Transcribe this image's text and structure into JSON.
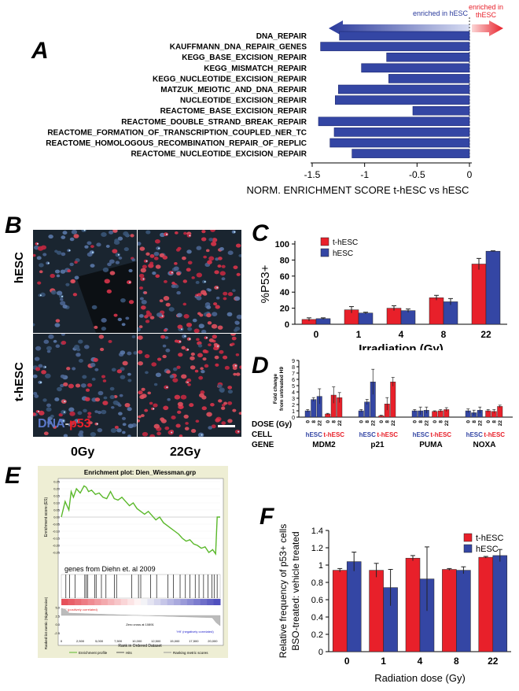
{
  "panelA": {
    "label": "A",
    "enriched_hESC": "enriched in hESC",
    "enriched_thESC": "enriched in thESC",
    "xlabel": "NORM. ENRICHMENT SCORE t-hESC vs hESC",
    "ticks": [
      "-1.5",
      "-1",
      "-0.5",
      "0"
    ],
    "chart_data": {
      "type": "bar",
      "orientation": "horizontal",
      "categories": [
        "DNA_REPAIR",
        "KAUFFMANN_DNA_REPAIR_GENES",
        "KEGG_BASE_EXCISION_REPAIR",
        "KEGG_MISMATCH_REPAIR",
        "KEGG_NUCLEOTIDE_EXCISION_REPAIR",
        "MATZUK_MEIOTIC_AND_DNA_REPAIR",
        "NUCLEOTIDE_EXCISION_REPAIR",
        "REACTOME_BASE_EXCISION_REPAIR",
        "REACTOME_DOUBLE_STRAND_BREAK_REPAIR",
        "REACTOME_FORMATION_OF_TRANSCRIPTION_COUPLED_NER_TC",
        "REACTOME_HOMOLOGOUS_RECOMBINATION_REPAIR_OF_REPLIC",
        "REACTOME_NUCLEOTIDE_EXCISION_REPAIR"
      ],
      "values": [
        -1.24,
        -1.42,
        -0.79,
        -1.03,
        -0.77,
        -1.25,
        -1.28,
        -0.54,
        -1.44,
        -1.29,
        -1.33,
        -1.12
      ],
      "xlim": [
        -1.5,
        0
      ]
    }
  },
  "panelB": {
    "label": "B",
    "row_labels": [
      "hESC",
      "t-hESC"
    ],
    "col_labels": [
      "0Gy",
      "22Gy"
    ],
    "legend_dna": "DNA",
    "legend_sep": "-",
    "legend_p53": "p53"
  },
  "panelC": {
    "label": "C",
    "ylabel": "%P53+",
    "xlabel": "Irradiation (Gy)",
    "yticks": [
      "0",
      "20",
      "40",
      "60",
      "80",
      "100"
    ],
    "chart_data": {
      "type": "bar",
      "categories": [
        "0",
        "1",
        "4",
        "8",
        "22"
      ],
      "series": [
        {
          "name": "t-hESC",
          "color": "#e8202a",
          "values": [
            6,
            18,
            20,
            33,
            75
          ],
          "errors": [
            2,
            4,
            3,
            3,
            7
          ]
        },
        {
          "name": "hESC",
          "color": "#3446a4",
          "values": [
            7,
            14,
            17,
            28,
            91
          ],
          "errors": [
            1,
            1,
            2,
            4,
            0.5
          ]
        }
      ],
      "ylim": [
        0,
        100
      ]
    }
  },
  "panelD": {
    "label": "D",
    "ylabel": "Fold change from untreated H9",
    "yticks": [
      "0",
      "1",
      "2",
      "3",
      "4",
      "5",
      "6",
      "7",
      "8",
      "9"
    ],
    "dose_label": "DOSE (Gy)",
    "cell_label": "CELL",
    "gene_label": "GENE",
    "doses": [
      "0",
      "8",
      "22"
    ],
    "cells": [
      "hESC",
      "t-hESC"
    ],
    "chart_data": {
      "type": "bar",
      "groups": [
        {
          "gene": "MDM2",
          "hESC": [
            1,
            2.8,
            3.3
          ],
          "hESC_err": [
            0.2,
            0.3,
            1.2
          ],
          "thESC": [
            0.5,
            3.5,
            3.1
          ],
          "thESC_err": [
            0.1,
            1.3,
            0.8
          ]
        },
        {
          "gene": "p21",
          "hESC": [
            1,
            2.4,
            5.6
          ],
          "hESC_err": [
            0.2,
            0.4,
            2
          ],
          "thESC": [
            0.2,
            2.1,
            5.6
          ],
          "thESC_err": [
            0.1,
            1,
            0.7
          ]
        },
        {
          "gene": "PUMA",
          "hESC": [
            1,
            1,
            1.1
          ],
          "hESC_err": [
            0.2,
            0.6,
            0.5
          ],
          "thESC": [
            0.9,
            1,
            1.2
          ],
          "thESC_err": [
            0.1,
            0.2,
            0.3
          ]
        },
        {
          "gene": "NOXA",
          "hESC": [
            1,
            0.7,
            1.1
          ],
          "hESC_err": [
            0.3,
            0.4,
            0.5
          ],
          "thESC": [
            1,
            0.9,
            1.7
          ],
          "thESC_err": [
            0.2,
            0.3,
            0.2
          ]
        }
      ],
      "ylim": [
        0,
        9
      ]
    }
  },
  "panelE": {
    "label": "E",
    "title": "Enrichment plot: Dien_Wiessman.grp",
    "es_label": "Enrichment score (ES)",
    "es_ticks": [
      "0.25",
      "0.20",
      "0.15",
      "0.10",
      "0.05",
      "0.00",
      "-0.05",
      "-0.10",
      "-0.15",
      "-0.20",
      "-0.25"
    ],
    "genes_text": "genes from Diehn  et. al 2009",
    "pos_corr": "'t1' (positively correlated)",
    "neg_corr": "'H9' (negatively correlated)",
    "zero_cross": "Zero cross at 10891",
    "rank_label": "Ranked list metric (Signal2Noise)",
    "rank_ticks": [
      "5.0",
      "2.5",
      "0.0",
      "-2.5"
    ],
    "x_ticks": [
      "0",
      "2,500",
      "5,000",
      "7,500",
      "10,000",
      "12,500",
      "15,000",
      "17,500",
      "20,000"
    ],
    "x_label": "Rank in Ordered Dataset",
    "legend": [
      "Enrichment profile",
      "Hits",
      "Ranking metric scores"
    ],
    "chart_data": {
      "type": "line",
      "x": [
        0,
        500,
        1000,
        1300,
        1600,
        2000,
        2500,
        3000,
        3300,
        3600,
        4000,
        4500,
        5000,
        5500,
        6000,
        6500,
        7000,
        7500,
        8000,
        8500,
        9000,
        9500,
        10000,
        10500,
        11000,
        11500,
        12000,
        12500,
        13000,
        13500,
        14000,
        14500,
        15000,
        15500,
        16000,
        16500,
        17000,
        17500,
        18000,
        18500,
        19000,
        19500,
        20000,
        20400,
        20600,
        21000
      ],
      "y": [
        0,
        0.11,
        0.05,
        0.18,
        0.14,
        0.2,
        0.17,
        0.22,
        0.21,
        0.18,
        0.19,
        0.16,
        0.17,
        0.14,
        0.13,
        0.18,
        0.13,
        0.12,
        0.14,
        0.11,
        0.08,
        0.1,
        0.06,
        0.04,
        0.02,
        0.04,
        0.01,
        -0.02,
        0.0,
        -0.04,
        -0.06,
        -0.08,
        -0.1,
        -0.12,
        -0.15,
        -0.17,
        -0.16,
        -0.19,
        -0.2,
        -0.22,
        -0.21,
        -0.25,
        -0.23,
        -0.26,
        0.0,
        0.0
      ],
      "xlim": [
        0,
        21000
      ],
      "ylim": [
        -0.25,
        0.25
      ],
      "hits": [
        600,
        1100,
        1800,
        3100,
        3300,
        3500,
        4400,
        4600,
        5300,
        5900,
        7000,
        7300,
        9300,
        10200,
        10500,
        11800,
        12600,
        14100,
        14800,
        15700,
        16400,
        17000,
        17700,
        18200,
        18800,
        19400,
        19900,
        20200,
        20600
      ]
    }
  },
  "panelF": {
    "label": "F",
    "ylabel": "Relative frequency of p53+ cells BSO-treated: vehicle treated",
    "xlabel": "Radiation dose (Gy)",
    "yticks": [
      "0",
      "0.2",
      "0.4",
      "0.6",
      "0.8",
      "1",
      "1.2",
      "1.4"
    ],
    "chart_data": {
      "type": "bar",
      "categories": [
        "0",
        "1",
        "4",
        "8",
        "22"
      ],
      "series": [
        {
          "name": "t-hESC",
          "color": "#e8202a",
          "values": [
            0.94,
            0.94,
            1.08,
            0.95,
            1.09
          ],
          "errors": [
            0.02,
            0.08,
            0.03,
            0.01,
            0.01
          ]
        },
        {
          "name": "hESC",
          "color": "#3446a4",
          "values": [
            1.04,
            0.74,
            0.84,
            0.94,
            1.11
          ],
          "errors": [
            0.11,
            0.21,
            0.37,
            0.04,
            0.07
          ]
        }
      ],
      "ylim": [
        0,
        1.4
      ]
    }
  }
}
